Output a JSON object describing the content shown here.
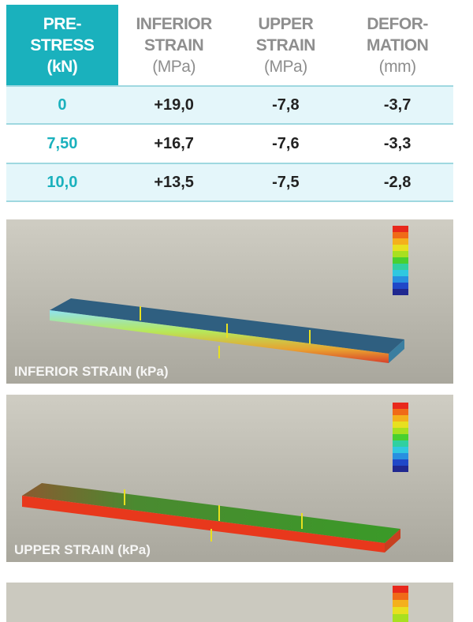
{
  "table": {
    "header": [
      [
        "PRE-",
        "STRESS",
        "(kN)"
      ],
      [
        "INFERIOR",
        "STRAIN",
        "(MPa)"
      ],
      [
        "UPPER",
        "STRAIN",
        "(MPa)"
      ],
      [
        "DEFOR-",
        "MATION",
        "(mm)"
      ]
    ],
    "rows": [
      [
        "0",
        "+19,0",
        "-7,8",
        "-3,7"
      ],
      [
        "7,50",
        "+16,7",
        "-7,6",
        "-3,3"
      ],
      [
        "10,0",
        "+13,5",
        "-7,5",
        "-2,8"
      ]
    ]
  },
  "panels": [
    {
      "caption": "INFERIOR STRAIN (kPa)"
    },
    {
      "caption": "UPPER STRAIN (kPa)"
    }
  ]
}
